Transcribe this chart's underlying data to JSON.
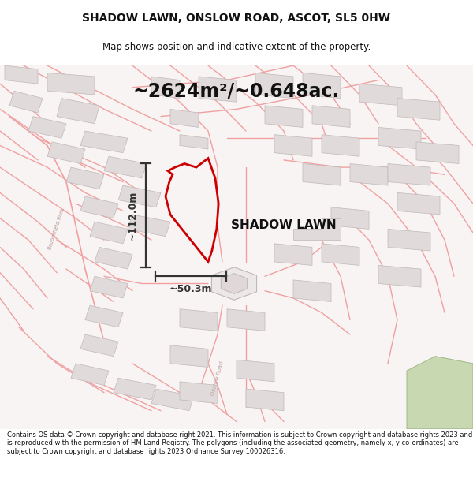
{
  "title_line1": "SHADOW LAWN, ONSLOW ROAD, ASCOT, SL5 0HW",
  "title_line2": "Map shows position and indicative extent of the property.",
  "area_text": "~2624m²/~0.648ac.",
  "property_label": "SHADOW LAWN",
  "dim_vertical": "~112.0m",
  "dim_horizontal": "~50.3m",
  "copyright_text": "Contains OS data © Crown copyright and database right 2021. This information is subject to Crown copyright and database rights 2023 and is reproduced with the permission of HM Land Registry. The polygons (including the associated geometry, namely x, y co-ordinates) are subject to Crown copyright and database rights 2023 Ordnance Survey 100026316.",
  "road_color": "#f0a0a0",
  "road_lw": 1.0,
  "building_face": "#e0dada",
  "building_edge": "#c0b8b8",
  "property_color": "#cc0000",
  "dim_color": "#333333",
  "map_bg": "#f8f4f4",
  "white": "#ffffff",
  "green_color": "#c8d8b0",
  "green_edge": "#a0b888"
}
